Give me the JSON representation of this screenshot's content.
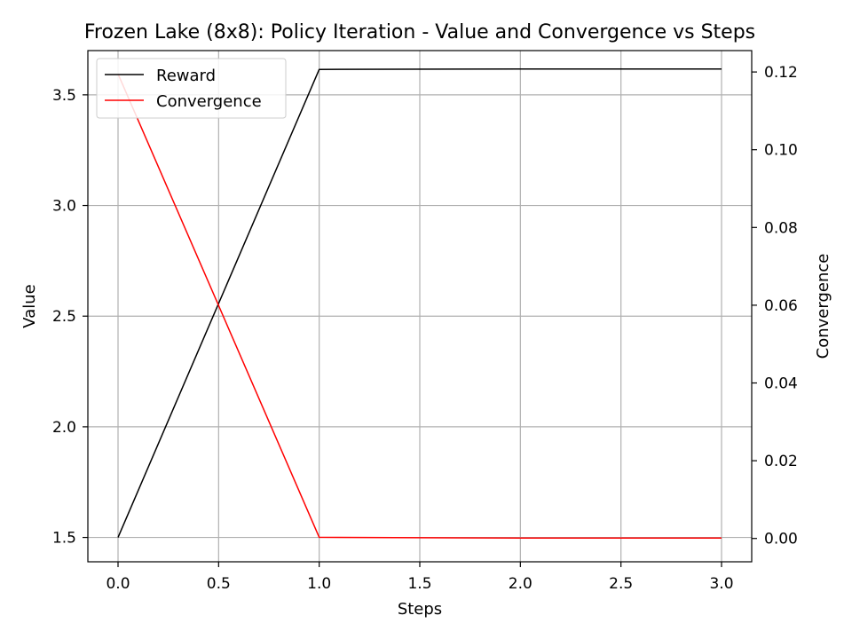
{
  "chart_data": {
    "type": "line",
    "title": "Frozen Lake (8x8): Policy Iteration - Value and Convergence vs Steps",
    "xlabel": "Steps",
    "ylabel": "Value",
    "y2label": "Convergence",
    "x": [
      0,
      1,
      2,
      3
    ],
    "xlim": [
      -0.15,
      3.15
    ],
    "ylim": [
      1.39,
      3.7
    ],
    "y2lim": [
      -0.006,
      0.1255
    ],
    "xticks": [
      "0.0",
      "0.5",
      "1.0",
      "1.5",
      "2.0",
      "2.5",
      "3.0"
    ],
    "yticks": [
      "1.5",
      "2.0",
      "2.5",
      "3.0",
      "3.5"
    ],
    "y2ticks": [
      "0.00",
      "0.02",
      "0.04",
      "0.06",
      "0.08",
      "0.10",
      "0.12"
    ],
    "grid": true,
    "legend_position": "top-left",
    "series": [
      {
        "name": "Reward",
        "axis": "left",
        "color": "#000000",
        "values": [
          1.5,
          3.615,
          3.617,
          3.617
        ]
      },
      {
        "name": "Convergence",
        "axis": "right",
        "color": "#ff0000",
        "values": [
          0.1195,
          0.0003,
          0.0001,
          0.0001
        ]
      }
    ]
  }
}
